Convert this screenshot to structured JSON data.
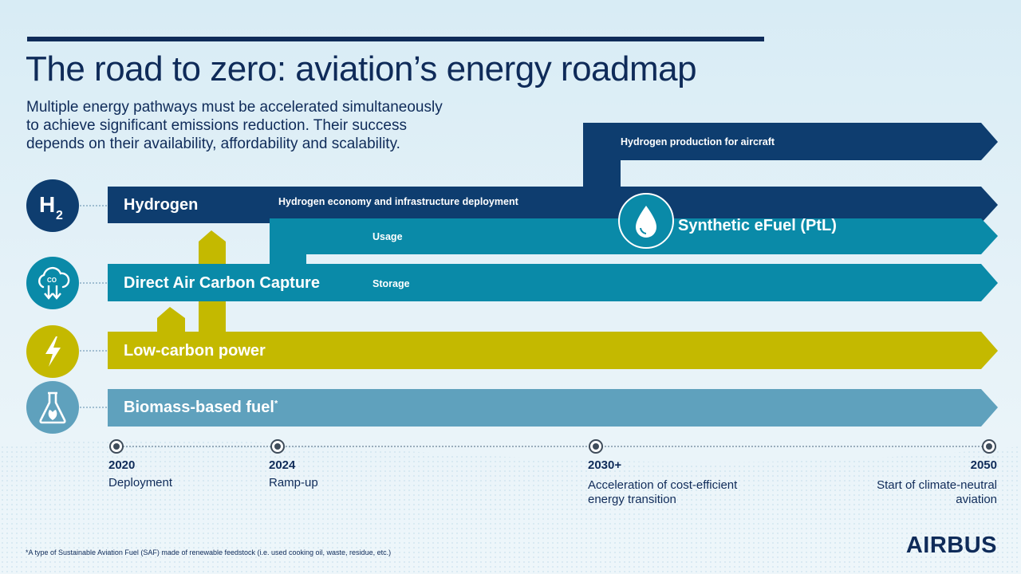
{
  "header": {
    "title": "The road to zero: aviation’s energy roadmap",
    "subtitle_lines": [
      "Multiple energy pathways must be accelerated simultaneously",
      "to achieve significant emissions reduction. Their success",
      "depends on their availability, affordability and scalability."
    ]
  },
  "pathways": {
    "hydrogen": {
      "label": "Hydrogen",
      "sub_infra": "Hydrogen economy and infrastructure deployment",
      "sub_aircraft": "Hydrogen production for aircraft",
      "icon": "h2-icon",
      "icon_text": "H",
      "icon_subscript": "2",
      "color": "#0e3d6f"
    },
    "efuel": {
      "label": "Synthetic eFuel (PtL)",
      "icon": "droplet-icon",
      "color": "#0a8aa8"
    },
    "dac": {
      "label": "Direct Air Carbon Capture",
      "sub_usage": "Usage",
      "sub_storage": "Storage",
      "icon": "co2-cloud-icon",
      "color": "#0a8aa8"
    },
    "power": {
      "label": "Low-carbon power",
      "icon": "lightning-icon",
      "color": "#c4b900"
    },
    "biomass": {
      "label": "Biomass-based fuel",
      "label_mark": "*",
      "icon": "flask-leaf-icon",
      "color": "#5fa1bd"
    }
  },
  "timeline": {
    "milestones": [
      {
        "year": "2020",
        "desc_lines": [
          "Deployment"
        ]
      },
      {
        "year": "2024",
        "desc_lines": [
          "Ramp-up"
        ]
      },
      {
        "year": "2030+",
        "desc_lines": [
          "Acceleration of cost-efficient",
          "energy transition"
        ]
      },
      {
        "year": "2050",
        "desc_lines": [
          "Start of climate-neutral",
          "aviation"
        ]
      }
    ]
  },
  "footnote": "*A type of Sustainable Aviation Fuel (SAF) made of renewable feedstock (i.e. used cooking oil, waste, residue, etc.)",
  "brand": {
    "logo": "AIRBUS"
  }
}
